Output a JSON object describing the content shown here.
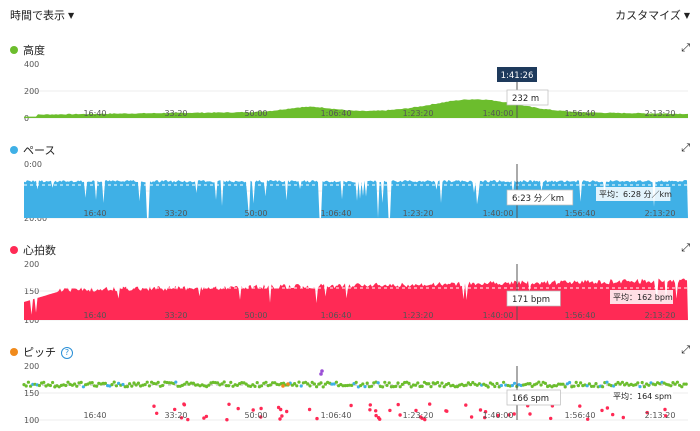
{
  "top": {
    "time_dropdown": "時間で表示",
    "customize": "カスタマイズ"
  },
  "colors": {
    "alt": "#6cbd2d",
    "pace": "#3fb0e6",
    "hr": "#ff2a55",
    "cadence_green": "#6cbd2d",
    "cadence_blue": "#3fb0e6",
    "cadence_red": "#ff2a55",
    "cadence_orange": "#f08a1c",
    "cadence_purple": "#9b4fd6"
  },
  "cursor": {
    "time_label": "1:41:26"
  },
  "xticks": [
    "16:40",
    "33:20",
    "50:00",
    "1:06:40",
    "1:23:20",
    "1:40:00",
    "1:56:40",
    "2:13:20"
  ],
  "altitude": {
    "title": "高度",
    "icon": "expand-icon",
    "yticks": [
      "400",
      "200",
      "0"
    ],
    "tooltip": "232 m"
  },
  "pace": {
    "title": "ペース",
    "yticks": [
      "0:00",
      "10:00",
      "20:00"
    ],
    "tooltip": "6:23 分／km",
    "avg_label": "平均：6:28 分／km"
  },
  "heart_rate": {
    "title": "心拍数",
    "yticks": [
      "200",
      "150",
      "100"
    ],
    "tooltip": "171 bpm",
    "avg_label": "平均：162 bpm"
  },
  "cadence": {
    "title": "ピッチ",
    "help": "?",
    "yticks": [
      "200",
      "150",
      "100"
    ],
    "tooltip": "166 spm",
    "avg_label": "平均：164 spm"
  }
}
